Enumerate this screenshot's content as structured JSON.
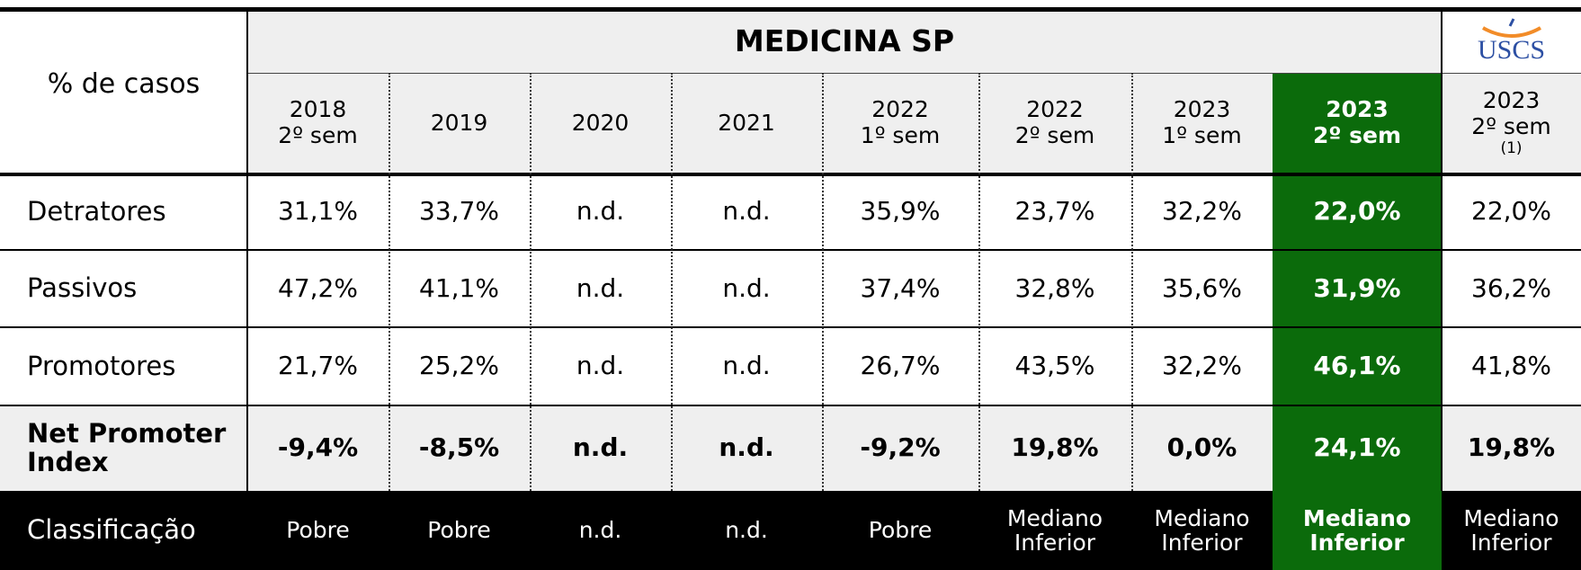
{
  "header": {
    "title": "% de casos",
    "group": "MEDICINA SP",
    "logo": "USCS"
  },
  "columns": [
    [
      "2018",
      "2º sem"
    ],
    [
      "2019"
    ],
    [
      "2020"
    ],
    [
      "2021"
    ],
    [
      "2022",
      "1º sem"
    ],
    [
      "2022",
      "2º sem"
    ],
    [
      "2023",
      "1º sem"
    ],
    [
      "2023",
      "2º sem"
    ],
    [
      "2023",
      "2º sem",
      "(1)"
    ]
  ],
  "rows": [
    {
      "label": "Detratores",
      "values": [
        "31,1%",
        "33,7%",
        "n.d.",
        "n.d.",
        "35,9%",
        "23,7%",
        "32,2%",
        "22,0%",
        "22,0%"
      ]
    },
    {
      "label": "Passivos",
      "values": [
        "47,2%",
        "41,1%",
        "n.d.",
        "n.d.",
        "37,4%",
        "32,8%",
        "35,6%",
        "31,9%",
        "36,2%"
      ]
    },
    {
      "label": "Promotores",
      "values": [
        "21,7%",
        "25,2%",
        "n.d.",
        "n.d.",
        "26,7%",
        "43,5%",
        "32,2%",
        "46,1%",
        "41,8%"
      ]
    },
    {
      "label": "Net Promoter Index",
      "values": [
        "-9,4%",
        "-8,5%",
        "n.d.",
        "n.d.",
        "-9,2%",
        "19,8%",
        "0,0%",
        "24,1%",
        "19,8%"
      ]
    }
  ],
  "classification": {
    "label": "Classificação",
    "values": [
      [
        "Pobre"
      ],
      [
        "Pobre"
      ],
      [
        "n.d."
      ],
      [
        "n.d."
      ],
      [
        "Pobre"
      ],
      [
        "Mediano",
        "Inferior"
      ],
      [
        "Mediano",
        "Inferior"
      ],
      [
        "Mediano",
        "Inferior"
      ],
      [
        "Mediano",
        "Inferior"
      ]
    ]
  }
}
